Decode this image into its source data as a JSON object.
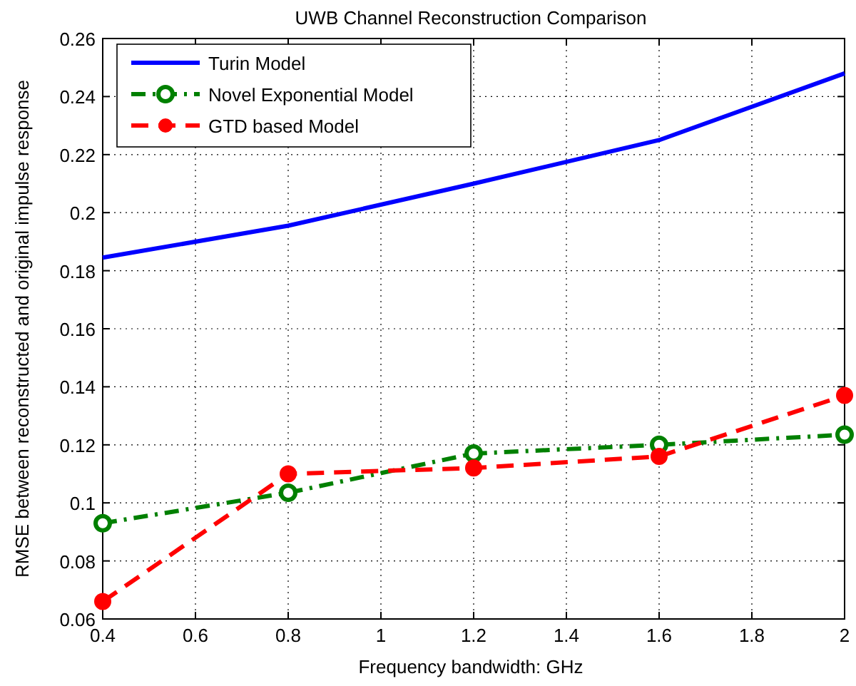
{
  "chart_data": {
    "type": "line",
    "title": "UWB Channel Reconstruction Comparison",
    "xlabel": "Frequency bandwidth: GHz",
    "ylabel": "RMSE between reconstructed and original impulse response",
    "x": [
      0.4,
      0.8,
      1.2,
      1.6,
      2
    ],
    "series": [
      {
        "name": "Turin Model",
        "color": "#0000ff",
        "values": [
          0.1845,
          0.1955,
          0.21,
          0.225,
          0.248
        ],
        "marker": "none",
        "line_style": "solid"
      },
      {
        "name": "Novel Exponential Model",
        "color": "#008000",
        "values": [
          0.093,
          0.1035,
          0.117,
          0.12,
          0.1235
        ],
        "marker": "circle",
        "line_style": "dashdot"
      },
      {
        "name": "GTD based Model",
        "color": "#ff0000",
        "values": [
          0.066,
          0.11,
          0.112,
          0.116,
          0.137
        ],
        "marker": "circle",
        "line_style": "dashed"
      }
    ],
    "xlim": [
      0.4,
      2
    ],
    "xticks": [
      0.4,
      0.6,
      0.8,
      1,
      1.2,
      1.4,
      1.6,
      1.8,
      2
    ],
    "ylim": [
      0.06,
      0.26
    ],
    "yticks": [
      0.06,
      0.08,
      0.1,
      0.12,
      0.14,
      0.16,
      0.18,
      0.2,
      0.22,
      0.24,
      0.26
    ],
    "grid": true,
    "legend": "top left"
  }
}
